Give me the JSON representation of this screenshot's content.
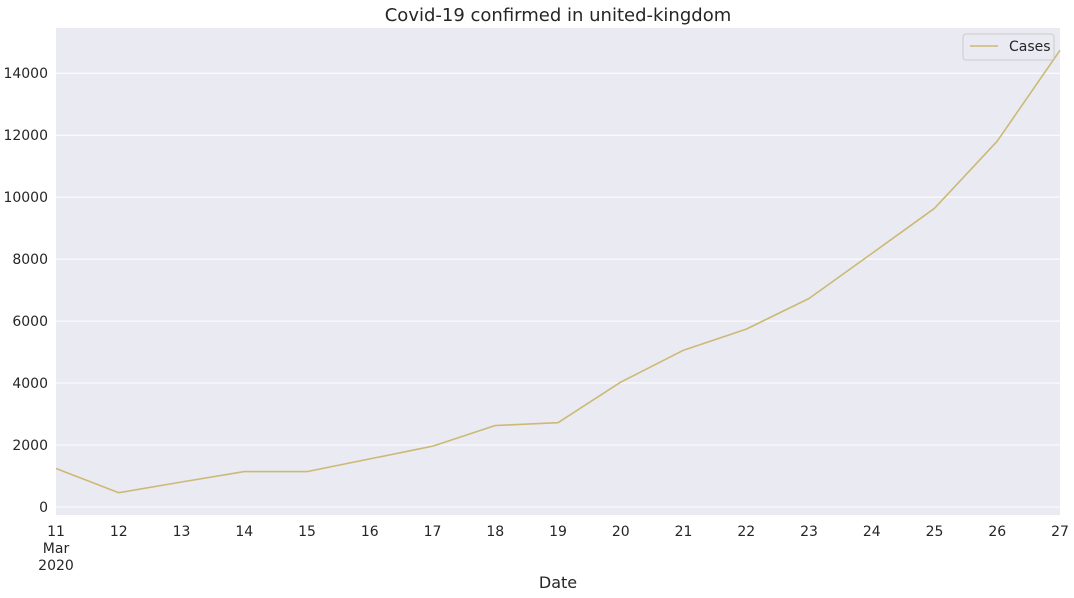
{
  "chart_data": {
    "type": "line",
    "title": "Covid-19 confirmed in united-kingdom",
    "xlabel": "Date",
    "ylabel": "",
    "x": [
      "2020-03-11",
      "2020-03-12",
      "2020-03-13",
      "2020-03-14",
      "2020-03-15",
      "2020-03-16",
      "2020-03-17",
      "2020-03-18",
      "2020-03-19",
      "2020-03-20",
      "2020-03-21",
      "2020-03-22",
      "2020-03-23",
      "2020-03-24",
      "2020-03-25",
      "2020-03-26",
      "2020-03-27"
    ],
    "x_tick_labels": [
      "11",
      "12",
      "13",
      "14",
      "15",
      "16",
      "17",
      "18",
      "19",
      "20",
      "21",
      "22",
      "23",
      "24",
      "25",
      "26",
      "27"
    ],
    "x_tick_sublabels": [
      "Mar",
      "2020"
    ],
    "series": [
      {
        "name": "Cases",
        "color": "#ccb974",
        "values": [
          1240,
          460,
          805,
          1140,
          1140,
          1550,
          1960,
          2630,
          2720,
          4030,
          5060,
          5740,
          6730,
          8180,
          9640,
          11810,
          14740
        ]
      }
    ],
    "ylim": [
      -260,
      15460
    ],
    "yticks": [
      0,
      2000,
      4000,
      6000,
      8000,
      10000,
      12000,
      14000
    ],
    "grid": true,
    "legend": "top-right",
    "background": "#eaeaf2"
  }
}
